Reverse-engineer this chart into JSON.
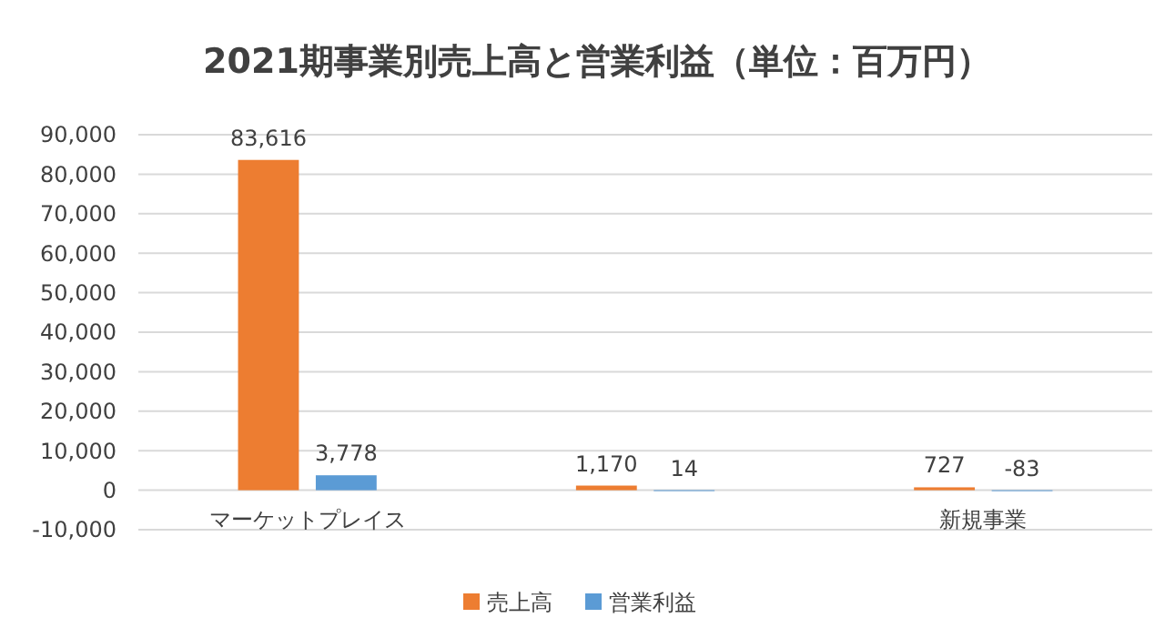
{
  "chart_data": {
    "type": "bar",
    "title": "2021期事業別売上高と営業利益（単位：百万円）",
    "categories": [
      "マーケットプレイス",
      null,
      "新規事業"
    ],
    "series": [
      {
        "name": "売上高",
        "color": "#ed7d31",
        "values": [
          83616,
          1170,
          727
        ]
      },
      {
        "name": "営業利益",
        "color": "#5b9bd5",
        "values": [
          3778,
          14,
          -83
        ]
      }
    ],
    "ylim": [
      -10000,
      90000
    ],
    "yticks": [
      {
        "value": -10000,
        "label": "-10,000"
      },
      0,
      {
        "value": 10000,
        "label": "10,000"
      },
      {
        "value": 20000,
        "label": "20,000"
      },
      {
        "value": 30000,
        "label": "30,000"
      },
      {
        "value": 40000,
        "label": "40,000"
      },
      {
        "value": 50000,
        "label": "50,000"
      },
      {
        "value": 60000,
        "label": "60,000"
      },
      {
        "value": 70000,
        "label": "70,000"
      },
      {
        "value": 80000,
        "label": "80,000"
      },
      {
        "value": 90000,
        "label": "90,000"
      }
    ],
    "grid": "y",
    "legend": "bottom",
    "value_labels": [
      [
        "83,616",
        "1,170",
        "727"
      ],
      [
        "3,778",
        "14",
        "-83"
      ]
    ]
  }
}
